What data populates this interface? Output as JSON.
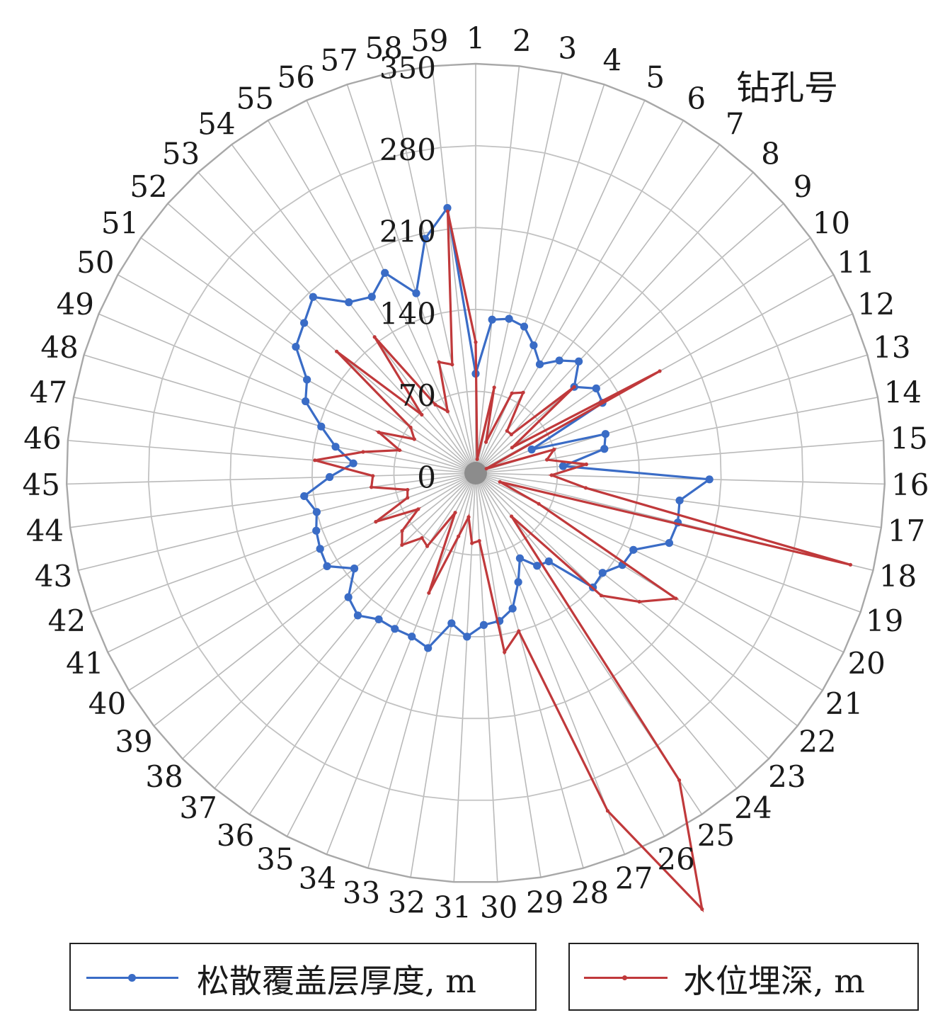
{
  "chart_data": {
    "type": "radar",
    "category_axis_label": "钻孔号",
    "categories": [
      "1",
      "2",
      "3",
      "4",
      "5",
      "6",
      "7",
      "8",
      "9",
      "10",
      "11",
      "12",
      "13",
      "14",
      "15",
      "16",
      "17",
      "18",
      "19",
      "20",
      "21",
      "22",
      "23",
      "24",
      "25",
      "26",
      "27",
      "28",
      "29",
      "30",
      "31",
      "32",
      "33",
      "34",
      "35",
      "36",
      "37",
      "38",
      "39",
      "40",
      "41",
      "42",
      "43",
      "44",
      "45",
      "46",
      "47",
      "48",
      "49",
      "50",
      "51",
      "52",
      "53",
      "54",
      "55",
      "56",
      "57",
      "58",
      "59"
    ],
    "radial_ticks": [
      "0",
      "70",
      "140",
      "210",
      "280",
      "350"
    ],
    "rlim": [
      0,
      350
    ],
    "grid": true,
    "legend_position": "bottom",
    "series": [
      {
        "name": "松散覆盖层厚度, m",
        "color": "#3a6cc6",
        "values": [
          85,
          132,
          135,
          132,
          120,
          108,
          120,
          130,
          112,
          126,
          124,
          52,
          116,
          112,
          75,
          200,
          176,
          178,
          176,
          150,
          148,
          138,
          140,
          98,
          95,
          82,
          100,
          120,
          128,
          130,
          140,
          130,
          155,
          150,
          150,
          150,
          158,
          152,
          132,
          150,
          148,
          145,
          140,
          148,
          125,
          105,
          122,
          138,
          158,
          165,
          188,
          195,
          205,
          182,
          175,
          188,
          162,
          205,
          228
        ]
      },
      {
        "name": "水位埋深, m",
        "color": "#c0393b",
        "values": [
          112,
          12,
          75,
          28,
          75,
          80,
          45,
          45,
          112,
          38,
          180,
          10,
          70,
          62,
          95,
          65,
          95,
          330,
          22,
          60,
          202,
          178,
          150,
          48,
          315,
          420,
          310,
          140,
          155,
          58,
          60,
          38,
          56,
          110,
          38,
          75,
          72,
          88,
          80,
          58,
          95,
          62,
          60,
          90,
          88,
          138,
          98,
          68,
          90,
          60,
          68,
          158,
          68,
          145,
          68,
          58,
          100,
          95,
          225
        ]
      }
    ]
  }
}
